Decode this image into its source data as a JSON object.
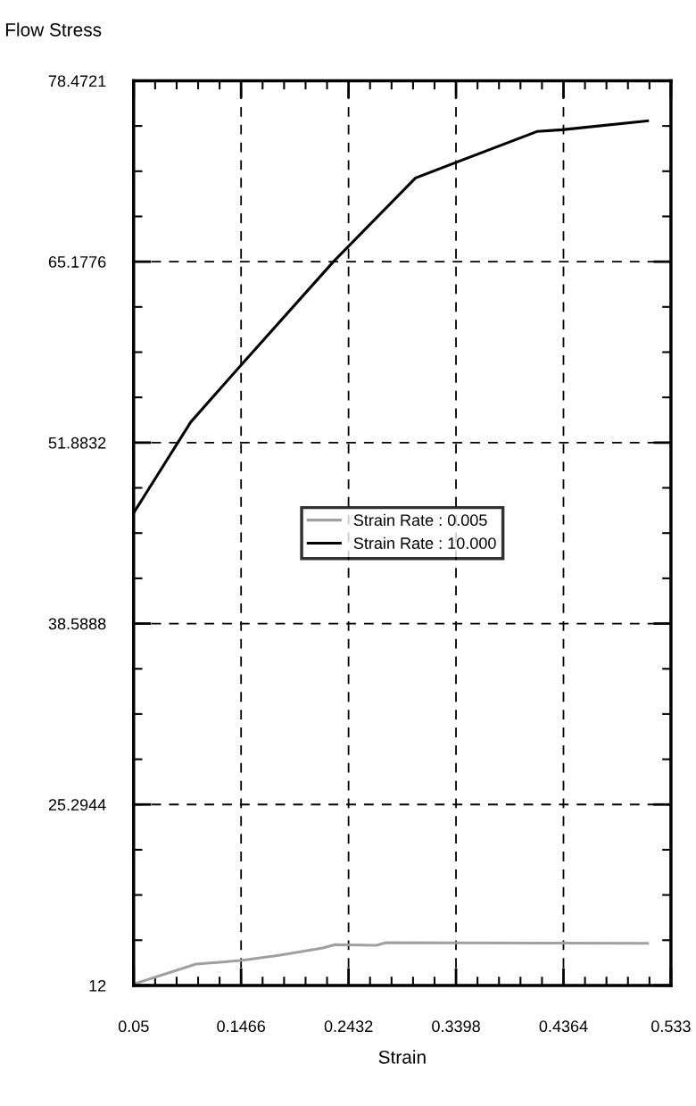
{
  "chart_data": {
    "type": "line",
    "ylabel": "Flow Stress",
    "xlabel": "Strain",
    "xlim": [
      0.05,
      0.533
    ],
    "xticks": [
      0.05,
      0.1466,
      0.2432,
      0.3398,
      0.4364,
      0.533
    ],
    "ylim": [
      12,
      78.4721
    ],
    "yticks": [
      12,
      25.2944,
      38.5888,
      51.8832,
      65.1776,
      78.4721
    ],
    "grid": true,
    "legend": "center",
    "line_style": "solid",
    "marker": "none",
    "series": [
      {
        "name": "Strain Rate : 0.005",
        "color": "#a0a0a0",
        "x": [
          0.05,
          0.106,
          0.1466,
          0.1817,
          0.22,
          0.231,
          0.268,
          0.277,
          0.512
        ],
        "values": [
          12.1,
          13.57,
          13.83,
          14.23,
          14.75,
          15.0,
          14.95,
          15.14,
          15.1
        ]
      },
      {
        "name": "Strain Rate : 10.000",
        "color": "#000000",
        "x": [
          0.05,
          0.1013,
          0.1466,
          0.2296,
          0.3034,
          0.4125,
          0.435,
          0.512
        ],
        "values": [
          46.71,
          53.39,
          57.58,
          65.18,
          71.33,
          74.74,
          74.87,
          75.53
        ]
      }
    ]
  }
}
